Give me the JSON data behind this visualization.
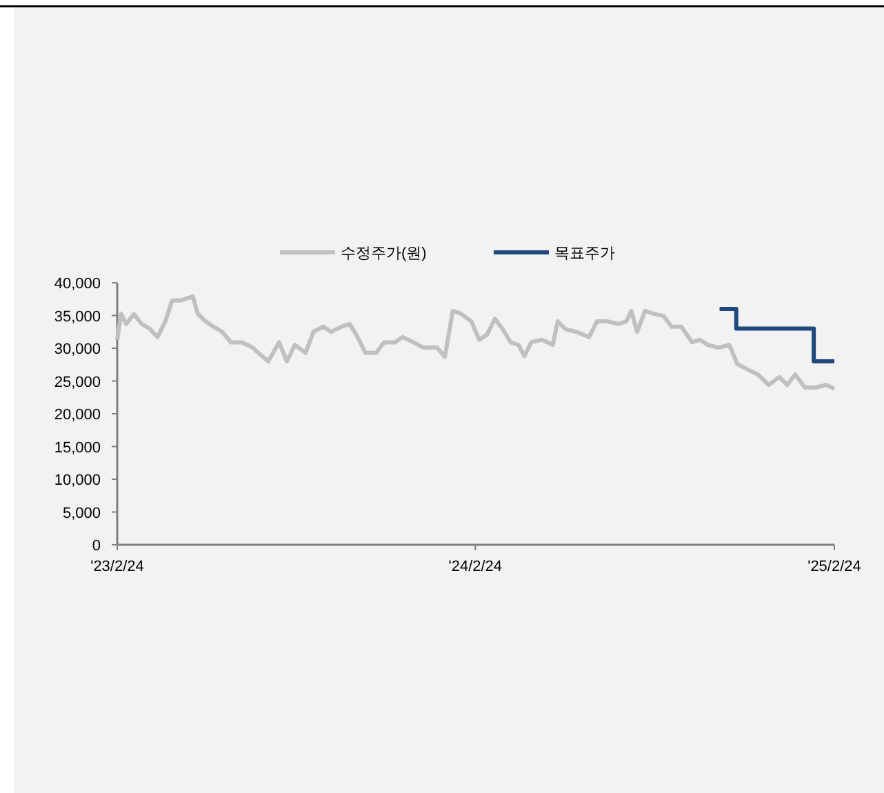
{
  "chart_data": {
    "type": "line",
    "legend": "top",
    "xlim": [
      "2023-02-24",
      "2025-02-24"
    ],
    "xticks": [
      {
        "value": "2023-02-24",
        "label": "'23/2/24"
      },
      {
        "value": "2024-02-24",
        "label": "'24/2/24"
      },
      {
        "value": "2025-02-24",
        "label": "'25/2/24"
      }
    ],
    "ylim": [
      0,
      40000
    ],
    "yticks": [
      0,
      {
        "value": 5000,
        "label": "5,000"
      },
      {
        "value": 10000,
        "label": "10,000"
      },
      {
        "value": 15000,
        "label": "15,000"
      },
      {
        "value": 20000,
        "label": "20,000"
      },
      {
        "value": 25000,
        "label": "25,000"
      },
      {
        "value": 30000,
        "label": "30,000"
      },
      {
        "value": 35000,
        "label": "35,000"
      },
      {
        "value": 40000,
        "label": "40,000"
      }
    ],
    "series": [
      {
        "name": "수정주가(원)",
        "color": "#c0c0c0",
        "x": [
          "2023-02-24",
          "2023-02-28",
          "2023-03-05",
          "2023-03-13",
          "2023-03-21",
          "2023-03-29",
          "2023-04-06",
          "2023-04-14",
          "2023-04-21",
          "2023-04-30",
          "2023-05-12",
          "2023-05-17",
          "2023-05-25",
          "2023-06-02",
          "2023-06-11",
          "2023-06-20",
          "2023-07-01",
          "2023-07-12",
          "2023-07-20",
          "2023-07-28",
          "2023-08-08",
          "2023-08-16",
          "2023-08-24",
          "2023-09-04",
          "2023-09-12",
          "2023-09-22",
          "2023-09-30",
          "2023-10-11",
          "2023-10-19",
          "2023-10-27",
          "2023-11-04",
          "2023-11-15",
          "2023-11-23",
          "2023-12-04",
          "2023-12-12",
          "2023-12-23",
          "2024-01-02",
          "2024-01-16",
          "2024-01-24",
          "2024-02-01",
          "2024-02-09",
          "2024-02-20",
          "2024-02-28",
          "2024-03-07",
          "2024-03-15",
          "2024-03-23",
          "2024-03-31",
          "2024-04-08",
          "2024-04-14",
          "2024-04-21",
          "2024-05-02",
          "2024-05-13",
          "2024-05-18",
          "2024-05-26",
          "2024-06-06",
          "2024-06-19",
          "2024-06-27",
          "2024-07-08",
          "2024-07-19",
          "2024-07-27",
          "2024-08-01",
          "2024-08-07",
          "2024-08-15",
          "2024-08-23",
          "2024-09-03",
          "2024-09-11",
          "2024-09-21",
          "2024-10-02",
          "2024-10-10",
          "2024-10-18",
          "2024-10-29",
          "2024-11-09",
          "2024-11-17",
          "2024-11-27",
          "2024-12-08",
          "2024-12-19",
          "2024-12-30",
          "2025-01-07",
          "2025-01-15",
          "2025-01-25",
          "2025-02-05",
          "2025-02-16",
          "2025-02-24"
        ],
        "values": [
          31300,
          35300,
          33700,
          35200,
          33700,
          33000,
          31700,
          34100,
          37300,
          37300,
          37900,
          35300,
          34100,
          33300,
          32500,
          30900,
          30900,
          30100,
          29000,
          28000,
          30900,
          28000,
          30500,
          29300,
          32500,
          33300,
          32500,
          33300,
          33700,
          31700,
          29300,
          29300,
          30900,
          30900,
          31700,
          30900,
          30100,
          30100,
          28700,
          35700,
          35300,
          34100,
          31300,
          32100,
          34500,
          32900,
          30900,
          30500,
          28800,
          30900,
          31300,
          30500,
          34100,
          32900,
          32500,
          31700,
          34100,
          34100,
          33700,
          34100,
          35700,
          32500,
          35700,
          35300,
          34900,
          33300,
          33300,
          30900,
          31300,
          30500,
          30100,
          30500,
          27600,
          26800,
          26000,
          24400,
          25600,
          24400,
          26000,
          24000,
          24000,
          24400,
          23800
        ]
      },
      {
        "name": "목표주가",
        "color": "#1f497d",
        "type": "step",
        "x": [
          "2024-10-30",
          "2024-11-16",
          "2025-02-03",
          "2025-02-24"
        ],
        "values": [
          36000,
          33000,
          28000,
          28000
        ]
      }
    ]
  }
}
